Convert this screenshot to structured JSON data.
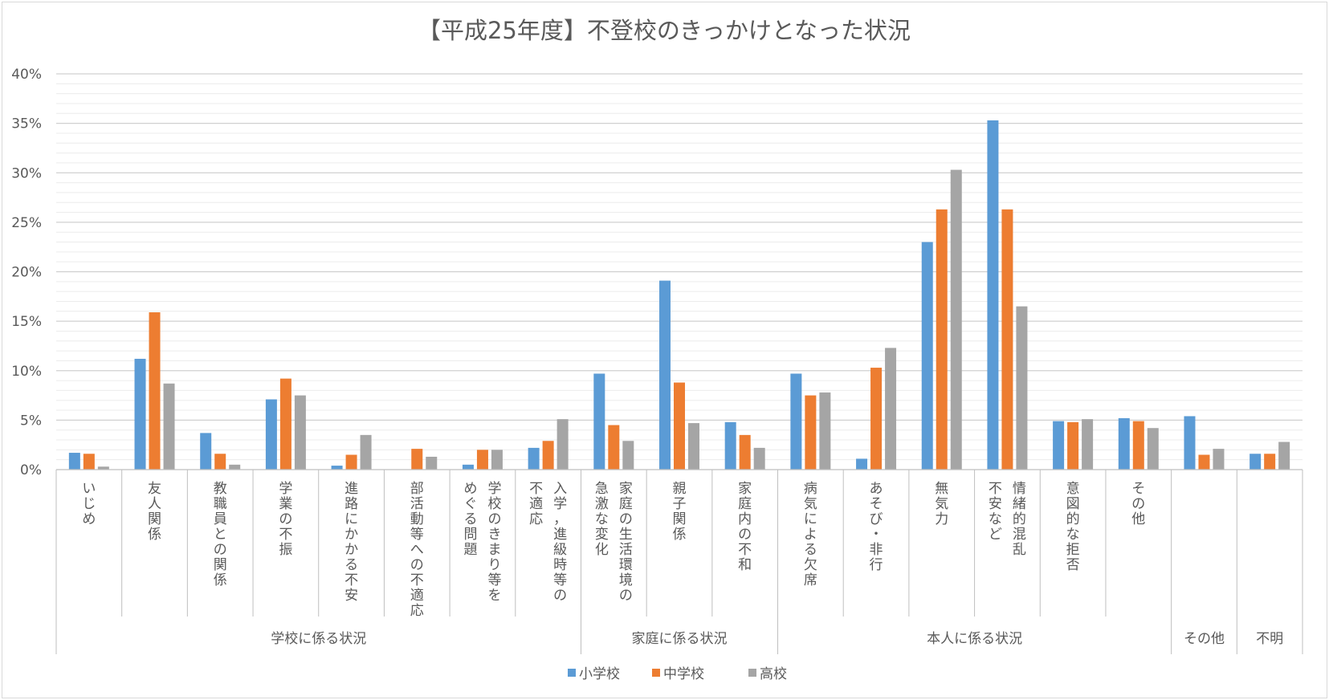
{
  "chart_data": {
    "type": "bar",
    "title": "【平成25年度】不登校のきっかけとなった状況",
    "y_ticks": [
      "0%",
      "5%",
      "10%",
      "15%",
      "20%",
      "25%",
      "30%",
      "35%",
      "40%"
    ],
    "ylim": [
      0,
      40
    ],
    "grid": true,
    "legend_position": "bottom",
    "categories": [
      [
        "いじめ"
      ],
      [
        "友人関係"
      ],
      [
        "教職員との関係"
      ],
      [
        "学業の不振"
      ],
      [
        "進路にかかる不安"
      ],
      [
        "部活動等への不適応"
      ],
      [
        "学校のきまり等を",
        "めぐる問題"
      ],
      [
        "入学，進級時等の",
        "不適応"
      ],
      [
        "家庭の生活環境の",
        "急激な変化"
      ],
      [
        "親子関係"
      ],
      [
        "家庭内の不和"
      ],
      [
        "病気による欠席"
      ],
      [
        "あそび・非行"
      ],
      [
        "無気力"
      ],
      [
        "情緒的混乱",
        "不安など"
      ],
      [
        "意図的な拒否"
      ],
      [
        "その他"
      ],
      [
        ""
      ],
      [
        ""
      ]
    ],
    "groups": [
      {
        "label": "学校に係る状況",
        "start": 0,
        "count": 8
      },
      {
        "label": "家庭に係る状況",
        "start": 8,
        "count": 3
      },
      {
        "label": "本人に係る状況",
        "start": 11,
        "count": 6
      },
      {
        "label": "その他",
        "start": 17,
        "count": 1
      },
      {
        "label": "不明",
        "start": 18,
        "count": 1
      }
    ],
    "series": [
      {
        "name": "小学校",
        "color": "#5b9bd5",
        "values": [
          1.7,
          11.2,
          3.7,
          7.1,
          0.4,
          0.0,
          0.5,
          2.2,
          9.7,
          19.1,
          4.8,
          9.7,
          1.1,
          23.0,
          35.3,
          4.9,
          5.2,
          5.4,
          1.6
        ]
      },
      {
        "name": "中学校",
        "color": "#ed7d31",
        "values": [
          1.6,
          15.9,
          1.6,
          9.2,
          1.5,
          2.1,
          2.0,
          2.9,
          4.5,
          8.8,
          3.5,
          7.5,
          10.3,
          26.3,
          26.3,
          4.8,
          4.9,
          1.5,
          1.6
        ]
      },
      {
        "name": "高校",
        "color": "#a5a5a5",
        "values": [
          0.3,
          8.7,
          0.5,
          7.5,
          3.5,
          1.3,
          2.0,
          5.1,
          2.9,
          4.7,
          2.2,
          7.8,
          12.3,
          30.3,
          16.5,
          5.1,
          4.2,
          2.1,
          2.8
        ]
      }
    ]
  }
}
